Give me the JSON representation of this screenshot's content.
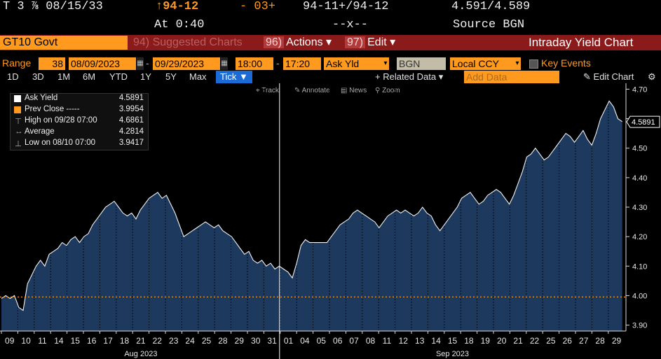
{
  "header": {
    "ticker_short": "T 3 ⅞ 08/15/33",
    "price_change": "↑94-12",
    "change": "- 03+",
    "bid_ask": "94-11+/94-12",
    "yields": "4.591/4.589",
    "time": "At 0:40",
    "size": "--x--",
    "source": "Source BGN"
  },
  "toolbar": {
    "security": "GT10 Govt",
    "suggested_num": "94)",
    "suggested_label": "Suggested Charts",
    "actions_num": "96)",
    "actions_label": "Actions ▾",
    "edit_num": "97)",
    "edit_label": "Edit ▾",
    "title": "Intraday Yield Chart"
  },
  "range_row": {
    "label": "Range",
    "bars": "38",
    "start_date": "08/09/2023",
    "end_date": "09/29/2023",
    "start_time": "18:00",
    "end_time": "17:20",
    "field": "Ask Yld",
    "source": "BGN",
    "currency": "Local CCY",
    "key_events": "Key Events"
  },
  "period_tabs": [
    "1D",
    "3D",
    "1M",
    "6M",
    "YTD",
    "1Y",
    "5Y",
    "Max"
  ],
  "tick_label": "Tick ▼",
  "related_data": "+ Related Data ▾",
  "add_data_placeholder": "Add Data",
  "edit_chart": "Edit Chart",
  "chart_tools": [
    "Track",
    "Annotate",
    "News",
    "Zoom"
  ],
  "legend": {
    "ask_yield_label": "Ask Yield",
    "ask_yield_value": "4.5891",
    "prev_close_label": "Prev Close -----",
    "prev_close_value": "3.9954",
    "high_label": "High on 09/28 07:00",
    "high_value": "4.6861",
    "average_label": "Average",
    "average_value": "4.2814",
    "low_label": "Low on 08/10 07:00",
    "low_value": "3.9417"
  },
  "colors": {
    "area_fill": "#1d3a5e",
    "line": "#f2f2f2",
    "prev_close": "#ff9a1f",
    "accent": "#ff9a1f",
    "header_bar": "#8b1a1a",
    "tick_active": "#1a6bd6"
  },
  "chart_data": {
    "type": "area",
    "ylim": [
      3.88,
      4.72
    ],
    "yticks": [
      3.9,
      4.0,
      4.1,
      4.2,
      4.3,
      4.4,
      4.5,
      4.6,
      4.7
    ],
    "ytick_labels": [
      "3.90",
      "4.00",
      "4.10",
      "4.20",
      "4.30",
      "4.40",
      "4.50",
      "4.60",
      "4.70"
    ],
    "current_value": 4.5891,
    "current_label": "4.5891",
    "prev_close": 3.9954,
    "days": [
      {
        "label": "09",
        "month": "Aug"
      },
      {
        "label": "10",
        "month": "Aug"
      },
      {
        "label": "11",
        "month": "Aug"
      },
      {
        "label": "14",
        "month": "Aug"
      },
      {
        "label": "15",
        "month": "Aug"
      },
      {
        "label": "16",
        "month": "Aug"
      },
      {
        "label": "17",
        "month": "Aug"
      },
      {
        "label": "18",
        "month": "Aug"
      },
      {
        "label": "21",
        "month": "Aug"
      },
      {
        "label": "22",
        "month": "Aug"
      },
      {
        "label": "23",
        "month": "Aug"
      },
      {
        "label": "24",
        "month": "Aug"
      },
      {
        "label": "25",
        "month": "Aug"
      },
      {
        "label": "28",
        "month": "Aug"
      },
      {
        "label": "29",
        "month": "Aug"
      },
      {
        "label": "30",
        "month": "Aug"
      },
      {
        "label": "31",
        "month": "Aug"
      },
      {
        "label": "01",
        "month": "Sep"
      },
      {
        "label": "04",
        "month": "Sep"
      },
      {
        "label": "05",
        "month": "Sep"
      },
      {
        "label": "06",
        "month": "Sep"
      },
      {
        "label": "07",
        "month": "Sep"
      },
      {
        "label": "08",
        "month": "Sep"
      },
      {
        "label": "11",
        "month": "Sep"
      },
      {
        "label": "12",
        "month": "Sep"
      },
      {
        "label": "13",
        "month": "Sep"
      },
      {
        "label": "14",
        "month": "Sep"
      },
      {
        "label": "15",
        "month": "Sep"
      },
      {
        "label": "18",
        "month": "Sep"
      },
      {
        "label": "19",
        "month": "Sep"
      },
      {
        "label": "20",
        "month": "Sep"
      },
      {
        "label": "21",
        "month": "Sep"
      },
      {
        "label": "22",
        "month": "Sep"
      },
      {
        "label": "25",
        "month": "Sep"
      },
      {
        "label": "26",
        "month": "Sep"
      },
      {
        "label": "27",
        "month": "Sep"
      },
      {
        "label": "28",
        "month": "Sep"
      },
      {
        "label": "29",
        "month": "Sep"
      }
    ],
    "month_labels": [
      "Aug 2023",
      "Sep 2023"
    ],
    "series": [
      {
        "name": "Ask Yield",
        "values": [
          3.99,
          4.0,
          3.99,
          4.0,
          3.96,
          3.95,
          4.04,
          4.07,
          4.1,
          4.12,
          4.1,
          4.14,
          4.15,
          4.16,
          4.18,
          4.17,
          4.19,
          4.2,
          4.18,
          4.2,
          4.21,
          4.24,
          4.26,
          4.28,
          4.3,
          4.31,
          4.32,
          4.3,
          4.28,
          4.27,
          4.28,
          4.26,
          4.29,
          4.31,
          4.33,
          4.34,
          4.35,
          4.33,
          4.34,
          4.31,
          4.28,
          4.24,
          4.2,
          4.21,
          4.22,
          4.23,
          4.24,
          4.25,
          4.24,
          4.23,
          4.24,
          4.22,
          4.21,
          4.2,
          4.18,
          4.16,
          4.14,
          4.15,
          4.12,
          4.11,
          4.12,
          4.1,
          4.11,
          4.09,
          4.1,
          4.09,
          4.08,
          4.06,
          4.11,
          4.17,
          4.19,
          4.18,
          4.18,
          4.18,
          4.18,
          4.18,
          4.2,
          4.22,
          4.24,
          4.25,
          4.26,
          4.28,
          4.29,
          4.28,
          4.27,
          4.26,
          4.25,
          4.23,
          4.25,
          4.27,
          4.28,
          4.29,
          4.28,
          4.29,
          4.28,
          4.27,
          4.28,
          4.3,
          4.28,
          4.27,
          4.24,
          4.22,
          4.24,
          4.26,
          4.28,
          4.3,
          4.33,
          4.34,
          4.35,
          4.33,
          4.31,
          4.32,
          4.34,
          4.35,
          4.36,
          4.35,
          4.33,
          4.31,
          4.34,
          4.38,
          4.42,
          4.47,
          4.48,
          4.5,
          4.48,
          4.46,
          4.47,
          4.49,
          4.51,
          4.53,
          4.55,
          4.54,
          4.52,
          4.54,
          4.56,
          4.53,
          4.51,
          4.55,
          4.6,
          4.63,
          4.66,
          4.64,
          4.6,
          4.59
        ]
      }
    ]
  }
}
